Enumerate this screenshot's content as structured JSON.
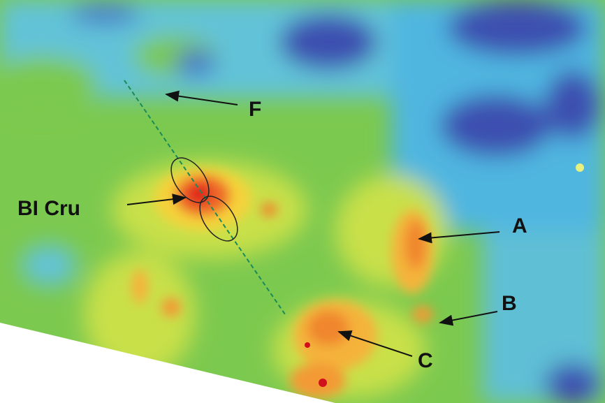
{
  "image": {
    "labels": [
      "F",
      "BI Cru",
      "A",
      "B",
      "C"
    ]
  }
}
